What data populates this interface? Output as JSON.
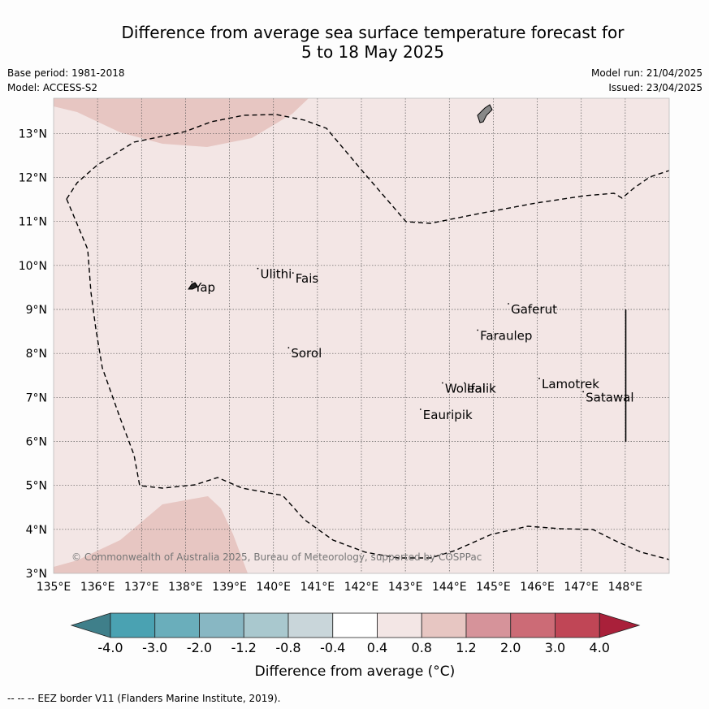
{
  "title": {
    "line1": "Difference from average sea surface temperature forecast for",
    "line2": "5 to 18 May 2025"
  },
  "meta": {
    "base_period": "Base period: 1981-2018",
    "model": "Model: ACCESS-S2",
    "model_run": "Model run: 21/04/2025",
    "issued": "Issued: 23/04/2025"
  },
  "map": {
    "lon_range": [
      135,
      149
    ],
    "lat_range": [
      3,
      13.8
    ],
    "lon_ticks": [
      "135°E",
      "136°E",
      "137°E",
      "138°E",
      "139°E",
      "140°E",
      "141°E",
      "142°E",
      "143°E",
      "144°E",
      "145°E",
      "146°E",
      "147°E",
      "148°E"
    ],
    "lat_ticks": [
      "3°N",
      "4°N",
      "5°N",
      "6°N",
      "7°N",
      "8°N",
      "9°N",
      "10°N",
      "11°N",
      "12°N",
      "13°N"
    ],
    "background_color": "#f3e6e5",
    "warm_patch_color": "#e7c6c2",
    "copyright": "© Commonwealth of Australia 2025, Bureau of Meteorology, supported by COSPPac",
    "places": [
      {
        "name": "Ulithi",
        "lon": 139.7,
        "lat": 9.8
      },
      {
        "name": "Fais",
        "lon": 140.5,
        "lat": 9.7
      },
      {
        "name": "Yap",
        "lon": 138.2,
        "lat": 9.5
      },
      {
        "name": "Gaferut",
        "lon": 145.4,
        "lat": 9.0
      },
      {
        "name": "Faraulep",
        "lon": 144.7,
        "lat": 8.4
      },
      {
        "name": "Sorol",
        "lon": 140.4,
        "lat": 8.0
      },
      {
        "name": "Lamotrek",
        "lon": 146.1,
        "lat": 7.3
      },
      {
        "name": "Woleai",
        "lon": 143.9,
        "lat": 7.2
      },
      {
        "name": "Ifalik",
        "lon": 144.4,
        "lat": 7.2
      },
      {
        "name": "Satawal",
        "lon": 147.1,
        "lat": 7.0
      },
      {
        "name": "Eauripik",
        "lon": 143.4,
        "lat": 6.6
      }
    ]
  },
  "colorbar": {
    "ticks": [
      "-4.0",
      "-3.0",
      "-2.0",
      "-1.2",
      "-0.8",
      "-0.4",
      "0.4",
      "0.8",
      "1.2",
      "2.0",
      "3.0",
      "4.0"
    ],
    "colors": [
      "#3f7f8a",
      "#4aa2b2",
      "#6aaebb",
      "#88b7c3",
      "#a9c8ce",
      "#c9d6da",
      "#ffffff",
      "#f3e6e5",
      "#e7c6c2",
      "#d6939a",
      "#cc6b76",
      "#c04656",
      "#a9203a"
    ],
    "label": "Difference from average (°C)"
  },
  "footer": "--  --  -- EEZ border V11 (Flanders Marine Institute, 2019)."
}
